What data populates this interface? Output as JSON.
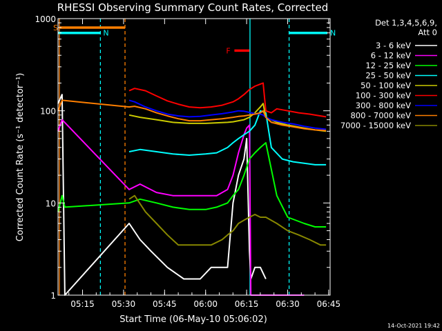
{
  "chart_data": {
    "type": "line",
    "title": "RHESSI Observing Summary Count Rates, Corrected",
    "xlabel": "Start Time (06-May-10 05:06:02)",
    "ylabel": "Corrected Count Rate (s⁻¹ detector⁻¹)",
    "y_scale": "log",
    "ylim": [
      1,
      1000
    ],
    "y_ticks": [
      {
        "value": 1,
        "label": "1"
      },
      {
        "value": 10,
        "label": "10"
      },
      {
        "value": 100,
        "label": "100"
      },
      {
        "value": 1000,
        "label": "1000"
      }
    ],
    "x_unit": "minutes after 05:06:02",
    "xlim": [
      0,
      99.5
    ],
    "x_ticks": [
      {
        "value": 8.97,
        "label": "05:15"
      },
      {
        "value": 23.97,
        "label": "05:30"
      },
      {
        "value": 38.97,
        "label": "05:45"
      },
      {
        "value": 53.97,
        "label": "06:00"
      },
      {
        "value": 68.97,
        "label": "06:15"
      },
      {
        "value": 83.97,
        "label": "06:30"
      },
      {
        "value": 98.97,
        "label": "06:45"
      }
    ],
    "legend": {
      "header": [
        "Det 1,3,4,5,6,9,",
        "Att 0"
      ],
      "placement": "right"
    },
    "flags": [
      {
        "label": "S",
        "color": "#ff7f00",
        "x": [
          0.5,
          24.5
        ],
        "y": 800
      },
      {
        "label": "N",
        "color": "#00ffff",
        "x": [
          0,
          15.5
        ],
        "y": 700
      },
      {
        "label": "N",
        "color": "#00ffff",
        "x": [
          84.5,
          98.5
        ],
        "y": 700
      },
      {
        "label": "F",
        "color": "#ff0000",
        "x": [
          64.5,
          70
        ],
        "y": 450
      }
    ],
    "vlines": [
      {
        "x": 0.5,
        "color": "#ff7f00",
        "style": "solid"
      },
      {
        "x": 15.5,
        "color": "#00ffff",
        "style": "dashed"
      },
      {
        "x": 24.5,
        "color": "#ff7f00",
        "style": "dashed"
      },
      {
        "x": 70.2,
        "color": "#00ffff",
        "style": "solid"
      },
      {
        "x": 84.5,
        "color": "#00ffff",
        "style": "dashed"
      }
    ],
    "series": [
      {
        "name": "3 - 6 keV",
        "color": "#ffffff",
        "x": [
          0,
          1.5,
          2.5,
          26,
          30,
          34,
          40,
          46,
          52,
          56,
          60,
          62,
          64,
          66,
          68,
          69,
          70,
          70.5,
          72,
          74,
          76
        ],
        "y": [
          120,
          150,
          1,
          6,
          4,
          3,
          2,
          1.5,
          1.5,
          2,
          2,
          2,
          10,
          20,
          30,
          50,
          3,
          1.5,
          2,
          2,
          1.5
        ]
      },
      {
        "name": "6 - 12 keV",
        "color": "#ff00ff",
        "x": [
          0,
          1.5,
          26,
          30,
          36,
          42,
          48,
          54,
          58,
          62,
          64,
          66,
          68,
          69,
          70,
          70.5,
          86,
          90
        ],
        "y": [
          60,
          80,
          14,
          16,
          13,
          12,
          12,
          12,
          12,
          14,
          20,
          35,
          55,
          65,
          70,
          1,
          1,
          1
        ]
      },
      {
        "name": "12 - 25 keV",
        "color": "#00ff00",
        "x": [
          0,
          1.5,
          2.5,
          26,
          30,
          36,
          42,
          48,
          54,
          58,
          62,
          64,
          66,
          68,
          70,
          72,
          74,
          76,
          80,
          84,
          90,
          94,
          98
        ],
        "y": [
          8,
          12,
          9,
          10,
          11,
          10,
          9,
          8.5,
          8.5,
          9,
          10,
          12,
          14,
          20,
          30,
          35,
          40,
          45,
          12,
          7,
          6,
          5.5,
          5.5
        ]
      },
      {
        "name": "25 - 50 keV",
        "color": "#00ffff",
        "x": [
          26,
          30,
          36,
          42,
          48,
          54,
          58,
          62,
          64,
          66,
          68,
          70,
          72,
          74,
          76,
          78,
          82,
          86,
          90,
          94,
          98
        ],
        "y": [
          36,
          38,
          36,
          34,
          33,
          34,
          35,
          40,
          45,
          50,
          55,
          60,
          70,
          100,
          95,
          40,
          30,
          28,
          27,
          26,
          26
        ]
      },
      {
        "name": "50 - 100 keV",
        "color": "#cccc00",
        "x": [
          26,
          30,
          36,
          42,
          48,
          54,
          58,
          62,
          64,
          66,
          68,
          70,
          72,
          74,
          75,
          76,
          80,
          84,
          90,
          94,
          98
        ],
        "y": [
          90,
          85,
          80,
          75,
          73,
          73,
          74,
          75,
          76,
          78,
          80,
          85,
          95,
          110,
          120,
          85,
          75,
          70,
          65,
          62,
          60
        ]
      },
      {
        "name": "100 - 300 keV",
        "color": "#ff0000",
        "x": [
          26,
          28,
          32,
          36,
          40,
          44,
          48,
          52,
          56,
          60,
          64,
          66,
          68,
          70,
          72,
          74,
          75,
          76,
          78,
          80,
          84,
          88,
          92,
          96,
          98
        ],
        "y": [
          165,
          175,
          165,
          145,
          128,
          118,
          110,
          108,
          110,
          115,
          125,
          135,
          150,
          170,
          185,
          195,
          200,
          100,
          95,
          105,
          100,
          95,
          92,
          88,
          86
        ]
      },
      {
        "name": "300 - 800 keV",
        "color": "#0000ff",
        "x": [
          26,
          28,
          32,
          36,
          40,
          44,
          48,
          52,
          56,
          60,
          64,
          66,
          68,
          70,
          72,
          74,
          75,
          76,
          78,
          82,
          86,
          90,
          94,
          98
        ],
        "y": [
          130,
          125,
          110,
          100,
          92,
          88,
          86,
          87,
          90,
          93,
          97,
          100,
          99,
          96,
          93,
          92,
          90,
          85,
          80,
          75,
          72,
          68,
          65,
          63
        ]
      },
      {
        "name": "800 - 7000 keV",
        "color": "#ff7f00",
        "x": [
          0,
          1.5,
          26,
          28,
          32,
          36,
          40,
          44,
          48,
          52,
          56,
          60,
          64,
          66,
          68,
          70,
          72,
          74,
          75,
          76,
          78,
          82,
          86,
          90,
          94,
          98
        ],
        "y": [
          100,
          130,
          110,
          112,
          105,
          95,
          88,
          82,
          78,
          78,
          80,
          82,
          85,
          87,
          88,
          90,
          92,
          95,
          100,
          85,
          75,
          70,
          67,
          64,
          62,
          61
        ]
      },
      {
        "name": "7000 - 15000 keV",
        "color": "#888800",
        "x": [
          26,
          28,
          32,
          36,
          40,
          44,
          48,
          52,
          56,
          60,
          62,
          64,
          66,
          68,
          70,
          72,
          74,
          76,
          80,
          84,
          88,
          92,
          96,
          98
        ],
        "y": [
          11,
          12,
          8,
          6,
          4.5,
          3.5,
          3.5,
          3.5,
          3.5,
          4,
          4.5,
          5,
          6,
          6.5,
          7,
          7.5,
          7,
          7,
          6,
          5,
          4.5,
          4,
          3.5,
          3.5
        ]
      }
    ]
  },
  "timestamp": "14-Oct-2021 19:42"
}
